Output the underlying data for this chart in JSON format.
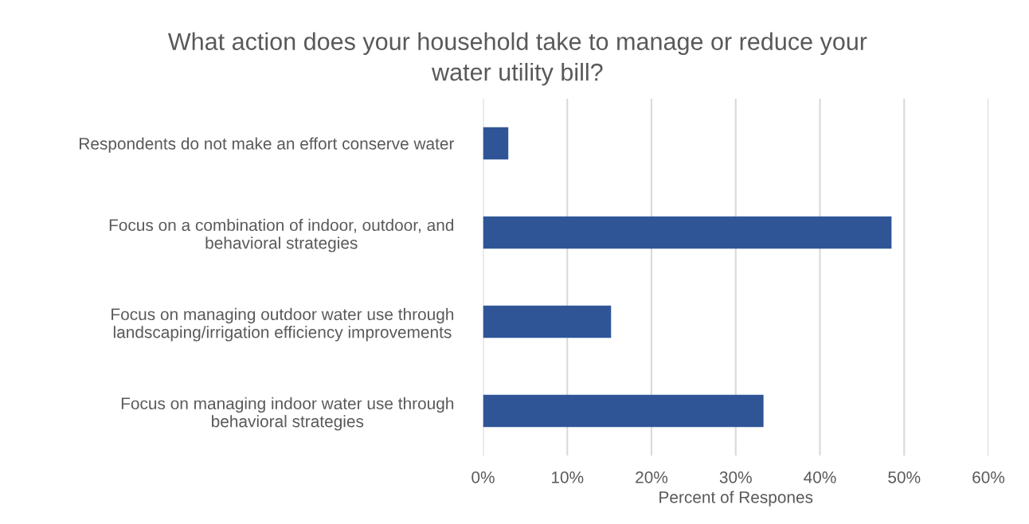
{
  "chart_data": {
    "type": "bar",
    "orientation": "horizontal",
    "title": "What action does your household take to manage or reduce your\nwater utility bill?",
    "xlabel": "Percent of Respones",
    "categories": [
      "Respondents do not make an effort conserve water",
      "Focus on a combination of indoor, outdoor, and\nbehavioral strategies",
      "Focus on managing outdoor water use through\nlandscaping/irrigation efficiency improvements",
      "Focus on managing indoor water use through\nbehavioral strategies"
    ],
    "values": [
      3.0,
      48.5,
      15.2,
      33.3
    ],
    "color": "#2f5597",
    "xlim": [
      0,
      60
    ],
    "xticks": [
      {
        "value": 0,
        "label": "0%"
      },
      {
        "value": 10,
        "label": "10%"
      },
      {
        "value": 20,
        "label": "20%"
      },
      {
        "value": 30,
        "label": "30%"
      },
      {
        "value": 40,
        "label": "40%"
      },
      {
        "value": 50,
        "label": "50%"
      },
      {
        "value": 60,
        "label": "60%"
      }
    ],
    "grid": "x",
    "legend": false
  }
}
